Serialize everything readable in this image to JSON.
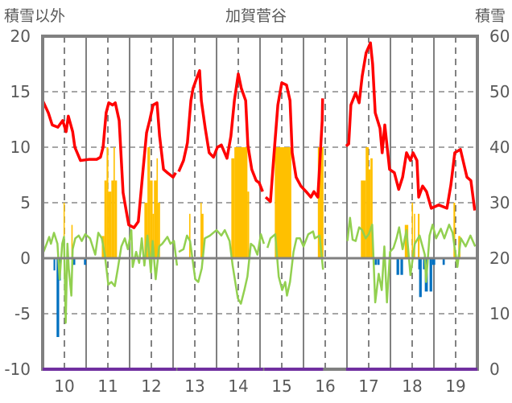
{
  "chart_data": {
    "type": "line",
    "title": "加賀菅谷",
    "ylabel_left": "積雪以外",
    "ylabel_right": "積雪",
    "xlabel": "",
    "xlim": [
      9.5,
      19.5
    ],
    "ylim_left": [
      -10,
      20
    ],
    "ylim_right": [
      0,
      60
    ],
    "x_ticks": [
      "10",
      "11",
      "12",
      "13",
      "14",
      "15",
      "16",
      "17",
      "18",
      "19"
    ],
    "y_ticks_left": [
      "20",
      "15",
      "10",
      "5",
      "0",
      "-5",
      "-10"
    ],
    "y_ticks_right": [
      "60",
      "50",
      "40",
      "30",
      "20",
      "10",
      "0"
    ],
    "grid": true,
    "colors": {
      "snow": "#ff0000",
      "orange": "#ffc000",
      "blue": "#0070c0",
      "green": "#92d050",
      "purple": "#7030a0",
      "axis": "#808080"
    },
    "snow_depth_right_axis": [
      [
        [
          9.5,
          48.4
        ],
        [
          9.63,
          46.2
        ],
        [
          9.72,
          44
        ],
        [
          9.85,
          43.6
        ],
        [
          9.96,
          44.8
        ],
        [
          10.04,
          42.8
        ],
        [
          10.09,
          45.6
        ],
        [
          10.19,
          42.8
        ],
        [
          10.24,
          40
        ],
        [
          10.37,
          37.6
        ],
        [
          10.56,
          37.8
        ],
        [
          10.74,
          37.8
        ],
        [
          10.83,
          38.2
        ],
        [
          10.89,
          40
        ],
        [
          10.96,
          46.2
        ],
        [
          11.02,
          48
        ],
        [
          11.11,
          47.6
        ],
        [
          11.17,
          48
        ],
        [
          11.26,
          44.8
        ],
        [
          11.3,
          39
        ],
        [
          11.35,
          31.8
        ],
        [
          11.43,
          28.2
        ],
        [
          11.48,
          26
        ],
        [
          11.6,
          25.5
        ],
        [
          11.7,
          26.6
        ],
        [
          11.81,
          36
        ],
        [
          11.89,
          42.6
        ],
        [
          11.96,
          44.8
        ],
        [
          12.04,
          47.6
        ],
        [
          12.13,
          48
        ],
        [
          12.19,
          42
        ],
        [
          12.28,
          36
        ],
        [
          12.37,
          35.4
        ],
        [
          12.5,
          34.6
        ],
        [
          12.56,
          35.4
        ]
      ],
      [
        [
          12.63,
          35.6
        ],
        [
          12.74,
          37.6
        ],
        [
          12.83,
          40.8
        ],
        [
          12.91,
          48.4
        ],
        [
          12.96,
          50.6
        ],
        [
          13.06,
          52.8
        ],
        [
          13.11,
          53.8
        ],
        [
          13.15,
          48.4
        ],
        [
          13.24,
          43.4
        ],
        [
          13.33,
          39
        ],
        [
          13.43,
          38.2
        ],
        [
          13.52,
          40
        ],
        [
          13.61,
          40.4
        ],
        [
          13.74,
          38
        ],
        [
          13.83,
          42
        ],
        [
          13.91,
          48.4
        ],
        [
          14.0,
          53.2
        ],
        [
          14.07,
          50.6
        ],
        [
          14.17,
          48.4
        ],
        [
          14.22,
          40.4
        ],
        [
          14.31,
          36
        ],
        [
          14.41,
          34
        ],
        [
          14.48,
          33.6
        ],
        [
          14.56,
          32
        ]
      ],
      [
        [
          14.63,
          31
        ],
        [
          14.74,
          30.2
        ],
        [
          14.81,
          37.6
        ],
        [
          14.91,
          47.6
        ],
        [
          15.0,
          51.6
        ],
        [
          15.11,
          51.2
        ],
        [
          15.19,
          48.4
        ],
        [
          15.24,
          39
        ],
        [
          15.33,
          34.6
        ],
        [
          15.44,
          33
        ],
        [
          15.56,
          32
        ],
        [
          15.67,
          31
        ],
        [
          15.74,
          32
        ],
        [
          15.83,
          31
        ],
        [
          15.93,
          44.8
        ],
        [
          15.94,
          48.8
        ]
      ],
      [
        [
          16.48,
          40.2
        ],
        [
          16.54,
          40.6
        ],
        [
          16.59,
          47.6
        ],
        [
          16.7,
          49.8
        ],
        [
          16.78,
          48
        ],
        [
          16.85,
          52.8
        ],
        [
          16.94,
          57
        ],
        [
          17.04,
          58.8
        ],
        [
          17.09,
          55
        ],
        [
          17.15,
          46.2
        ],
        [
          17.26,
          43.4
        ],
        [
          17.31,
          39
        ],
        [
          17.37,
          44
        ],
        [
          17.48,
          36
        ],
        [
          17.59,
          35.4
        ],
        [
          17.69,
          32.4
        ],
        [
          17.78,
          34.6
        ],
        [
          17.87,
          39
        ],
        [
          17.96,
          37.6
        ],
        [
          18.02,
          39
        ],
        [
          18.11,
          37.6
        ],
        [
          18.15,
          31
        ],
        [
          18.24,
          33
        ],
        [
          18.33,
          32
        ],
        [
          18.44,
          29
        ],
        [
          18.61,
          29.6
        ],
        [
          18.8,
          29
        ],
        [
          18.89,
          33.2
        ],
        [
          18.98,
          39
        ],
        [
          19.11,
          39.6
        ],
        [
          19.26,
          34.6
        ],
        [
          19.35,
          34
        ],
        [
          19.44,
          28.6
        ]
      ]
    ],
    "green_series_left_axis": [
      [
        [
          9.52,
          0.57
        ],
        [
          9.58,
          1.18
        ],
        [
          9.65,
          1.92
        ],
        [
          9.69,
          1.3
        ],
        [
          9.76,
          2.29
        ],
        [
          9.84,
          1.3
        ],
        [
          9.89,
          -1.89
        ],
        [
          9.95,
          1.3
        ],
        [
          9.99,
          1.92
        ],
        [
          10.03,
          -5.82
        ],
        [
          10.07,
          1.3
        ],
        [
          10.1,
          -0.91
        ],
        [
          10.16,
          -3.37
        ],
        [
          10.19,
          0.81
        ],
        [
          10.25,
          1.79
        ],
        [
          10.33,
          2.04
        ],
        [
          10.4,
          1.55
        ],
        [
          10.48,
          2.16
        ],
        [
          10.59,
          1.79
        ],
        [
          10.71,
          0.32
        ],
        [
          10.78,
          2.29
        ],
        [
          10.86,
          1.79
        ],
        [
          10.93,
          0.32
        ],
        [
          11.01,
          -2.38
        ],
        [
          11.08,
          -2.14
        ],
        [
          11.16,
          -2.51
        ],
        [
          11.23,
          -0.91
        ],
        [
          11.31,
          1.06
        ],
        [
          11.39,
          1.79
        ],
        [
          11.46,
          0.81
        ],
        [
          11.54,
          2.53
        ],
        [
          11.57,
          -0.79
        ],
        [
          11.65,
          0.57
        ],
        [
          11.72,
          -0.42
        ],
        [
          11.78,
          1.79
        ],
        [
          11.84,
          -0.66
        ],
        [
          11.91,
          2.04
        ],
        [
          11.99,
          -1.28
        ],
        [
          12.03,
          1.55
        ],
        [
          12.1,
          -1.89
        ],
        [
          12.18,
          1.06
        ],
        [
          12.25,
          1.3
        ],
        [
          12.37,
          1.92
        ],
        [
          12.44,
          1.3
        ],
        [
          12.52,
          1.55
        ],
        [
          12.59,
          -0.66
        ]
      ],
      [
        [
          12.63,
          0.57
        ],
        [
          12.74,
          0.81
        ],
        [
          12.82,
          2.04
        ],
        [
          12.89,
          1.55
        ],
        [
          13.01,
          -1.89
        ],
        [
          13.08,
          -2.14
        ],
        [
          13.16,
          -0.91
        ],
        [
          13.23,
          1.79
        ],
        [
          13.35,
          2.04
        ],
        [
          13.5,
          2.53
        ],
        [
          13.61,
          2.04
        ],
        [
          13.69,
          2.53
        ],
        [
          13.8,
          1.55
        ],
        [
          13.87,
          -0.66
        ],
        [
          13.99,
          -3.61
        ],
        [
          14.06,
          -4.1
        ],
        [
          14.14,
          -2.87
        ],
        [
          14.21,
          -1.65
        ],
        [
          14.29,
          1.3
        ],
        [
          14.36,
          1.06
        ],
        [
          14.44,
          0.32
        ],
        [
          14.52,
          2.16
        ],
        [
          14.59,
          1.3
        ]
      ],
      [
        [
          14.67,
          0.93
        ],
        [
          14.74,
          1.79
        ],
        [
          14.85,
          2.16
        ],
        [
          14.93,
          -1.65
        ],
        [
          15.01,
          -2.87
        ],
        [
          15.08,
          -2.14
        ],
        [
          15.12,
          -3.37
        ],
        [
          15.19,
          -2.14
        ],
        [
          15.27,
          0.57
        ],
        [
          15.34,
          1.79
        ],
        [
          15.42,
          1.79
        ],
        [
          15.5,
          1.06
        ],
        [
          15.61,
          2.16
        ],
        [
          15.72,
          2.41
        ],
        [
          15.76,
          1.79
        ],
        [
          15.87,
          2.04
        ],
        [
          15.95,
          -1.03
        ]
      ],
      [
        [
          16.51,
          1.55
        ],
        [
          16.57,
          3.64
        ],
        [
          16.63,
          1.67
        ],
        [
          16.7,
          1.55
        ],
        [
          16.78,
          2.78
        ],
        [
          16.85,
          2.53
        ],
        [
          16.93,
          1.79
        ],
        [
          17.0,
          2.16
        ],
        [
          17.08,
          3.02
        ],
        [
          17.15,
          -3.98
        ],
        [
          17.23,
          -1.4
        ],
        [
          17.3,
          -2.87
        ],
        [
          17.36,
          1.06
        ],
        [
          17.42,
          -3.98
        ],
        [
          17.49,
          0.57
        ],
        [
          17.57,
          0.93
        ],
        [
          17.64,
          1.79
        ],
        [
          17.7,
          2.78
        ],
        [
          17.78,
          0.81
        ],
        [
          17.87,
          2.53
        ],
        [
          17.96,
          -1.52
        ],
        [
          18.06,
          1.3
        ],
        [
          18.17,
          2.04
        ],
        [
          18.29,
          0.32
        ],
        [
          18.32,
          -2.14
        ],
        [
          18.4,
          2.04
        ],
        [
          18.47,
          3.02
        ],
        [
          18.55,
          1.79
        ],
        [
          18.66,
          2.65
        ],
        [
          18.74,
          1.79
        ],
        [
          18.85,
          3.02
        ],
        [
          18.93,
          2.29
        ],
        [
          19.04,
          -0.79
        ],
        [
          19.12,
          1.79
        ],
        [
          19.23,
          1.06
        ],
        [
          19.34,
          2.04
        ],
        [
          19.45,
          1.06
        ]
      ]
    ],
    "orange_bars_left_axis": [
      [
        9.98,
        10.0,
        5
      ],
      [
        10.16,
        10.19,
        3
      ],
      [
        10.86,
        10.92,
        2
      ],
      [
        10.92,
        10.97,
        7
      ],
      [
        10.97,
        11.01,
        10
      ],
      [
        11.01,
        11.08,
        6
      ],
      [
        11.08,
        11.13,
        7
      ],
      [
        11.13,
        11.16,
        10
      ],
      [
        11.16,
        11.21,
        7
      ],
      [
        11.84,
        11.91,
        5
      ],
      [
        11.91,
        11.97,
        10
      ],
      [
        11.97,
        12.03,
        7
      ],
      [
        12.03,
        12.06,
        4
      ],
      [
        12.06,
        12.12,
        7
      ],
      [
        12.12,
        12.15,
        9
      ],
      [
        12.15,
        12.2,
        5
      ],
      [
        12.87,
        12.9,
        4
      ],
      [
        13.13,
        13.15,
        5
      ],
      [
        13.15,
        13.2,
        4
      ],
      [
        13.84,
        13.91,
        9
      ],
      [
        13.91,
        14.21,
        10
      ],
      [
        14.21,
        14.25,
        6
      ],
      [
        14.84,
        15.22,
        10
      ],
      [
        15.83,
        15.96,
        10
      ],
      [
        16.82,
        16.93,
        7
      ],
      [
        16.93,
        17.0,
        10
      ],
      [
        17.0,
        17.04,
        8
      ],
      [
        17.04,
        17.09,
        9
      ],
      [
        17.83,
        17.91,
        3
      ],
      [
        17.99,
        18.02,
        5
      ],
      [
        18.04,
        18.07,
        4
      ],
      [
        18.13,
        18.17,
        4
      ],
      [
        18.95,
        18.99,
        5
      ],
      [
        19.06,
        19.11,
        2
      ]
    ],
    "blue_bars_left_axis": [
      [
        9.75,
        9.79,
        -1.1
      ],
      [
        9.82,
        9.88,
        -7.1
      ],
      [
        9.88,
        9.92,
        -2
      ],
      [
        10.19,
        10.25,
        -0.6
      ],
      [
        10.45,
        10.5,
        -0.6
      ],
      [
        17.14,
        17.19,
        -0.6
      ],
      [
        17.2,
        17.25,
        -0.6
      ],
      [
        17.64,
        17.7,
        -1.5
      ],
      [
        17.73,
        17.79,
        -1.5
      ],
      [
        18.14,
        18.16,
        -1
      ],
      [
        18.16,
        18.22,
        -3.5
      ],
      [
        18.25,
        18.29,
        -1
      ],
      [
        18.29,
        18.36,
        -3
      ],
      [
        18.4,
        18.46,
        -3
      ],
      [
        18.46,
        18.53,
        -0.6
      ],
      [
        18.7,
        18.75,
        -0.6
      ]
    ],
    "purple_baseline_right_axis": [
      [
        9.5,
        12.57,
        0
      ],
      [
        12.6,
        14.57,
        0
      ],
      [
        14.6,
        15.95,
        0
      ],
      [
        16.48,
        19.5,
        0
      ]
    ]
  }
}
